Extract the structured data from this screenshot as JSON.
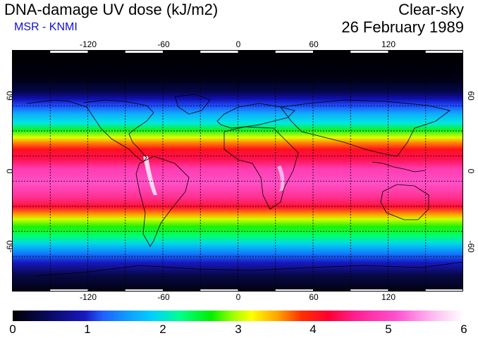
{
  "header": {
    "title": "DNA-damage UV dose (kJ/m2)",
    "source": "MSR - KNMI",
    "condition": "Clear-sky",
    "date": "26 February 1989"
  },
  "axes": {
    "longitude_ticks": [
      "-120",
      "-60",
      "0",
      "60",
      "120"
    ],
    "latitude_ticks": [
      "60",
      "0",
      "-60"
    ]
  },
  "colorbar": {
    "min": 0,
    "max": 6,
    "labels": [
      "0",
      "1",
      "2",
      "3",
      "4",
      "5",
      "6"
    ]
  },
  "colors": {
    "subtitle": "#1010d0"
  }
}
